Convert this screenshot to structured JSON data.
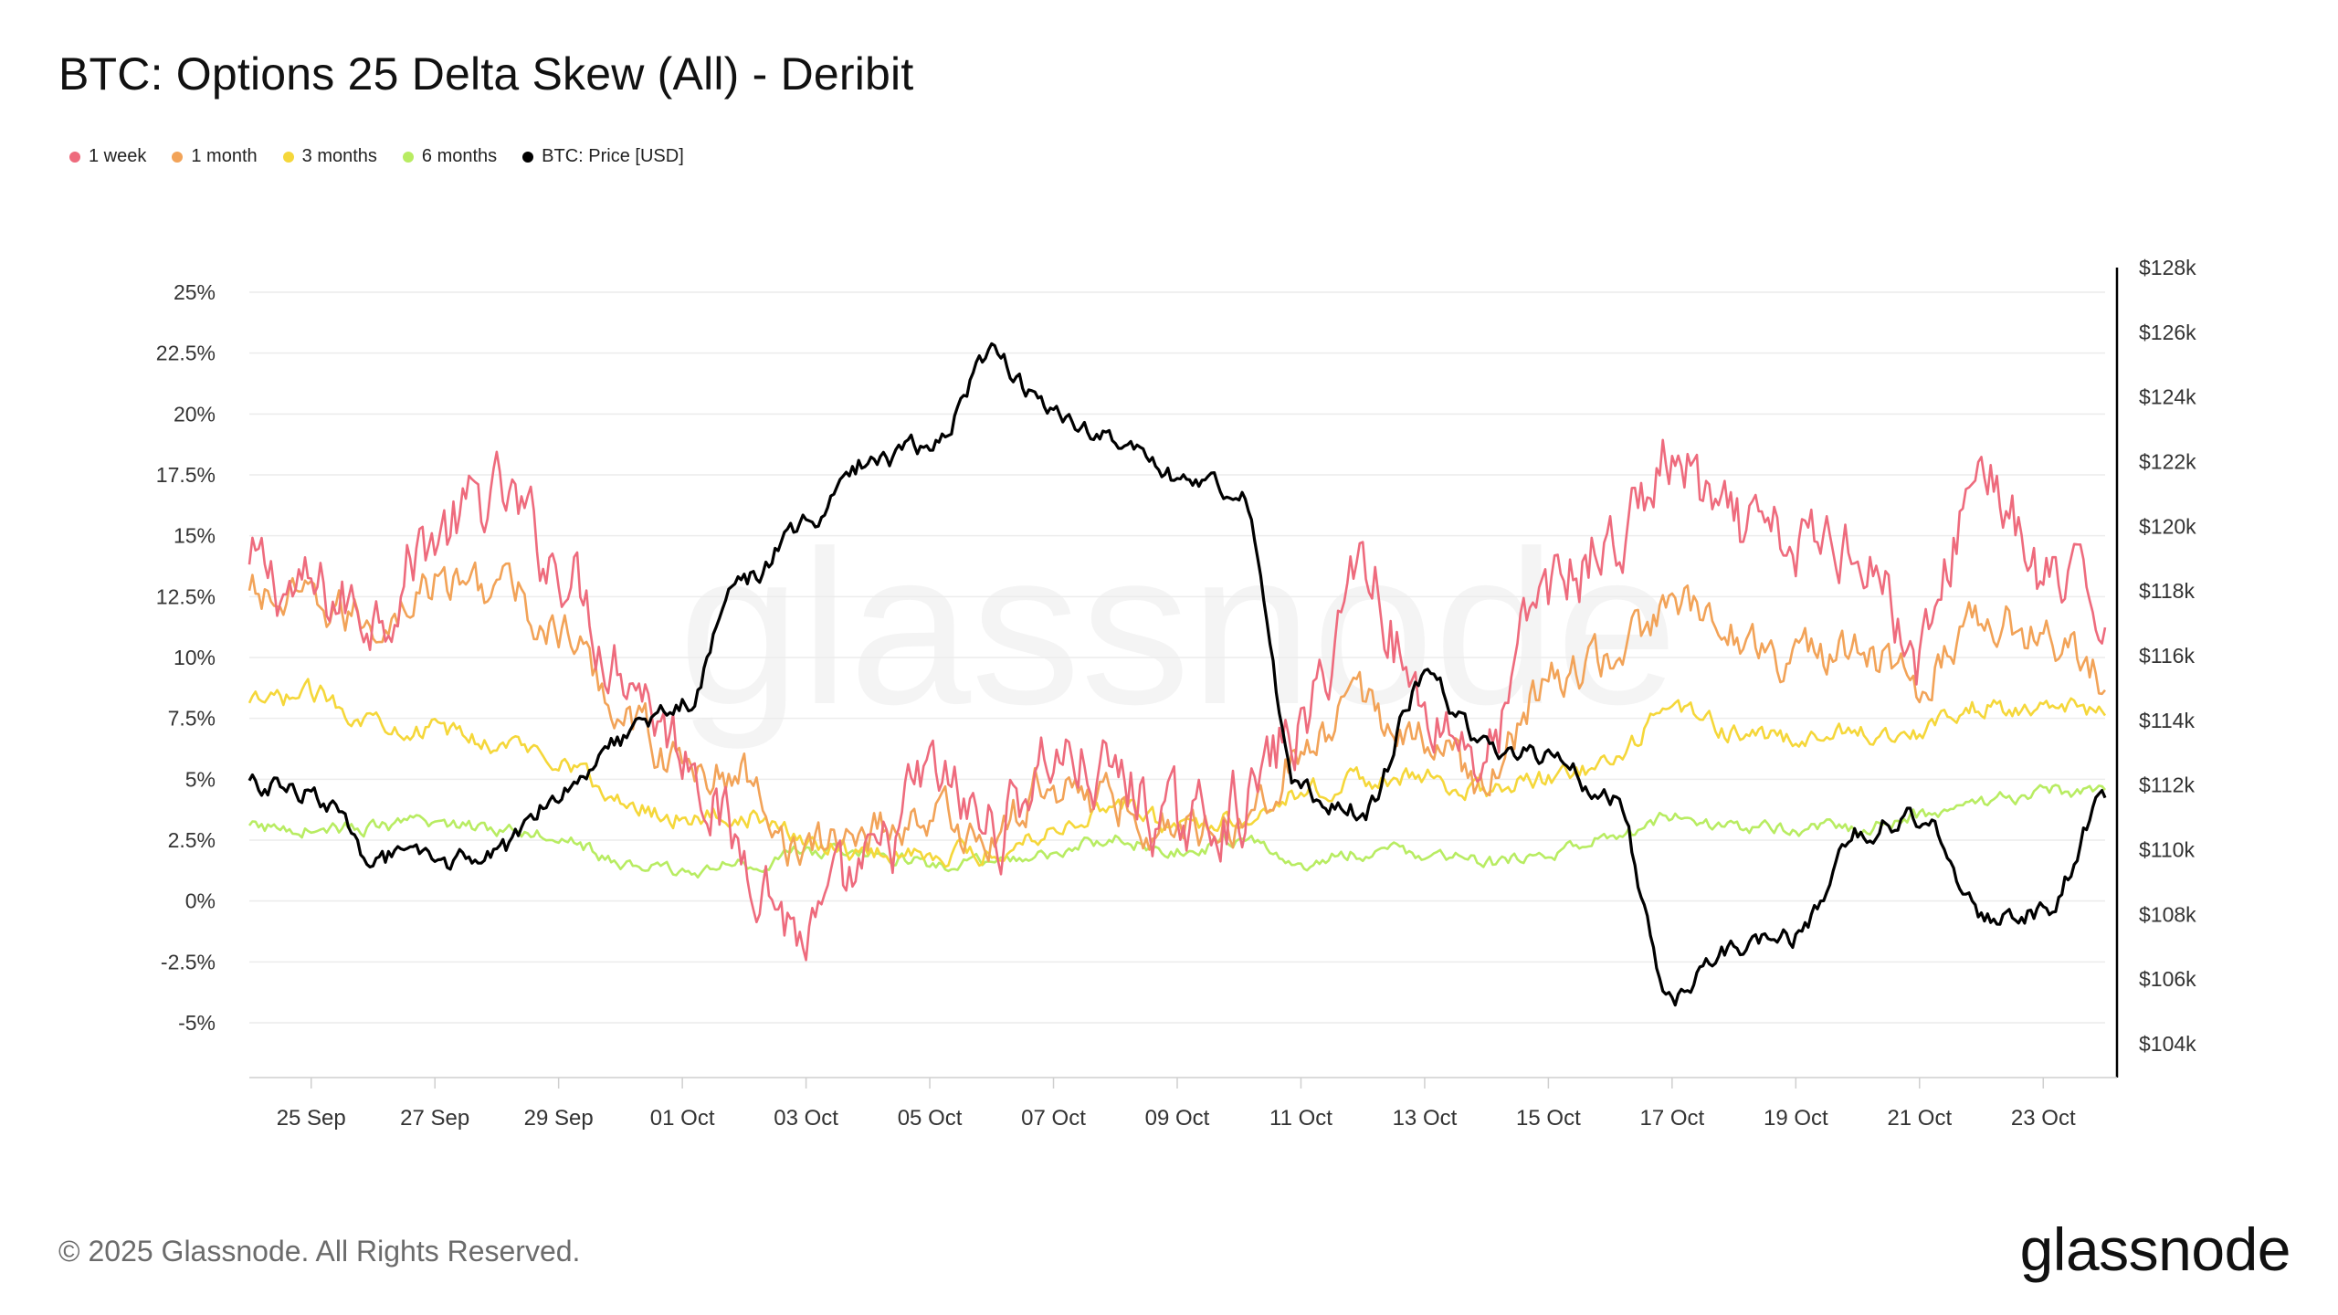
{
  "title": "BTC: Options 25 Delta Skew (All) - Deribit",
  "footer": "© 2025 Glassnode. All Rights Reserved.",
  "brand": "glassnode",
  "watermark": "glassnode",
  "colors": {
    "week": "#ee6b7d",
    "month": "#f2a358",
    "three": "#f5d73a",
    "six": "#b8ec62",
    "price": "#000000",
    "grid": "#ececec",
    "axis_text": "#333333"
  },
  "chart_data": {
    "type": "line",
    "title": "BTC: Options 25 Delta Skew (All) - Deribit",
    "xlabel": "",
    "ylabel": "",
    "x_range": [
      "2025-09-24",
      "2025-10-24"
    ],
    "x_ticks": [
      "25 Sep",
      "27 Sep",
      "29 Sep",
      "01 Oct",
      "03 Oct",
      "05 Oct",
      "07 Oct",
      "09 Oct",
      "11 Oct",
      "13 Oct",
      "15 Oct",
      "17 Oct",
      "19 Oct",
      "21 Oct",
      "23 Oct"
    ],
    "x_tick_dates": [
      "2025-09-25",
      "2025-09-27",
      "2025-09-29",
      "2025-10-01",
      "2025-10-03",
      "2025-10-05",
      "2025-10-07",
      "2025-10-09",
      "2025-10-11",
      "2025-10-13",
      "2025-10-15",
      "2025-10-17",
      "2025-10-19",
      "2025-10-21",
      "2025-10-23"
    ],
    "y_left": {
      "lim": [
        -7,
        26
      ],
      "ticks": [
        "25%",
        "22.5%",
        "20%",
        "17.5%",
        "15%",
        "12.5%",
        "10%",
        "7.5%",
        "5%",
        "2.5%",
        "0%",
        "-2.5%",
        "-5%"
      ],
      "tick_values": [
        25,
        22.5,
        20,
        17.5,
        15,
        12.5,
        10,
        7.5,
        5,
        2.5,
        0,
        -2.5,
        -5
      ]
    },
    "y_right": {
      "lim": [
        103,
        128
      ],
      "ticks": [
        "$128k",
        "$126k",
        "$124k",
        "$122k",
        "$120k",
        "$118k",
        "$116k",
        "$114k",
        "$112k",
        "$110k",
        "$108k",
        "$106k",
        "$104k"
      ],
      "tick_values": [
        128,
        126,
        124,
        122,
        120,
        118,
        116,
        114,
        112,
        110,
        108,
        106,
        104
      ]
    },
    "grid": true,
    "legend_position": "top-left",
    "x": [
      "2025-09-24",
      "2025-09-25",
      "2025-09-26",
      "2025-09-27",
      "2025-09-28",
      "2025-09-29",
      "2025-09-30",
      "2025-10-01",
      "2025-10-02",
      "2025-10-03",
      "2025-10-04",
      "2025-10-05",
      "2025-10-06",
      "2025-10-07",
      "2025-10-08",
      "2025-10-09",
      "2025-10-10",
      "2025-10-11",
      "2025-10-12",
      "2025-10-13",
      "2025-10-14",
      "2025-10-15",
      "2025-10-16",
      "2025-10-17",
      "2025-10-18",
      "2025-10-19",
      "2025-10-20",
      "2025-10-21",
      "2025-10-22",
      "2025-10-23",
      "2025-10-24"
    ],
    "series": [
      {
        "name": "1 week",
        "axis": "left",
        "color": "#ee6b7d",
        "values": [
          13.5,
          12.5,
          12,
          15,
          16.5,
          14,
          10,
          6.5,
          2,
          -1.5,
          1,
          5,
          3,
          6,
          5,
          3,
          4,
          7,
          14,
          8,
          6,
          13,
          14.5,
          18,
          15,
          14.5,
          15,
          10,
          18,
          13,
          12
        ]
      },
      {
        "name": "1 month",
        "axis": "left",
        "color": "#f2a358",
        "values": [
          12.5,
          12,
          11.5,
          13,
          13,
          11,
          8,
          5.5,
          5,
          2,
          3,
          3.5,
          2.5,
          5,
          4,
          3,
          3.5,
          6,
          8,
          6.5,
          5,
          9,
          10,
          12,
          11,
          10,
          10,
          9,
          12,
          11,
          9
        ]
      },
      {
        "name": "3 months",
        "axis": "left",
        "color": "#f5d73a",
        "values": [
          8,
          8.5,
          7.5,
          7,
          6.5,
          6,
          4,
          3.5,
          3.5,
          2.5,
          2,
          2,
          2,
          3,
          4,
          3,
          3.5,
          4.5,
          5,
          5,
          4.5,
          5,
          5.5,
          8,
          7,
          6.5,
          7,
          7,
          8,
          8,
          7.5
        ]
      },
      {
        "name": "6 months",
        "axis": "left",
        "color": "#b8ec62",
        "values": [
          3,
          3,
          3,
          3.2,
          3,
          2.8,
          1.5,
          1.2,
          1.5,
          2,
          2,
          1.5,
          1.5,
          2,
          2.5,
          2,
          2.5,
          1.5,
          2,
          2,
          1.5,
          2,
          2.5,
          3.5,
          3,
          3,
          3,
          3.5,
          4,
          4.5,
          4.5
        ]
      },
      {
        "name": "BTC: Price [USD]",
        "axis": "right",
        "color": "#000000",
        "values": [
          112,
          111.8,
          109.8,
          109.6,
          109.8,
          111.9,
          113.5,
          114.5,
          118.4,
          120,
          122,
          122.5,
          125.3,
          123.5,
          122.6,
          121.4,
          121.2,
          111.8,
          111.2,
          115.2,
          113.2,
          112.8,
          111.7,
          105.5,
          107,
          107.3,
          110.6,
          111,
          108,
          108,
          111.5
        ]
      }
    ]
  }
}
